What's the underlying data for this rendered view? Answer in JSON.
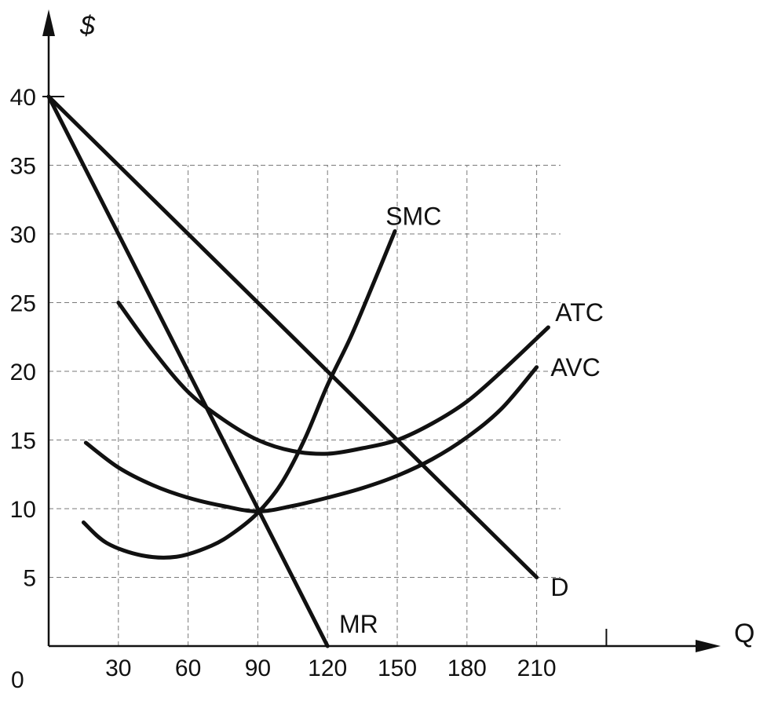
{
  "chart_data": {
    "type": "line",
    "ylabel": "$",
    "xlabel": "Q",
    "origin_label": "0",
    "xlim": [
      0,
      240
    ],
    "ylim": [
      0,
      40
    ],
    "x_ticks": [
      30,
      60,
      90,
      120,
      150,
      180,
      210
    ],
    "x_tick_labels": [
      "30",
      "60",
      "90",
      "120",
      "150",
      "180",
      "210"
    ],
    "y_ticks": [
      5,
      10,
      15,
      20,
      25,
      30,
      35,
      40
    ],
    "y_tick_labels": [
      "5",
      "10",
      "15",
      "20",
      "25",
      "30",
      "35",
      "40"
    ],
    "grid": true,
    "series": [
      {
        "name": "D",
        "points": [
          [
            0,
            40
          ],
          [
            210,
            5
          ]
        ]
      },
      {
        "name": "MR",
        "points": [
          [
            0,
            40
          ],
          [
            120,
            0
          ]
        ]
      },
      {
        "name": "SMC",
        "points": [
          [
            15,
            9
          ],
          [
            25,
            7.5
          ],
          [
            40,
            6.6
          ],
          [
            55,
            6.5
          ],
          [
            70,
            7.3
          ],
          [
            80,
            8.3
          ],
          [
            90,
            9.7
          ],
          [
            100,
            11.8
          ],
          [
            110,
            15
          ],
          [
            120,
            19
          ],
          [
            130,
            22.5
          ],
          [
            140,
            26.5
          ],
          [
            149,
            30.2
          ]
        ]
      },
      {
        "name": "ATC",
        "points": [
          [
            30,
            25
          ],
          [
            45,
            21.5
          ],
          [
            60,
            18.5
          ],
          [
            75,
            16.5
          ],
          [
            90,
            15
          ],
          [
            105,
            14.2
          ],
          [
            120,
            14
          ],
          [
            135,
            14.4
          ],
          [
            150,
            15
          ],
          [
            165,
            16.2
          ],
          [
            180,
            17.8
          ],
          [
            195,
            20
          ],
          [
            215,
            23.2
          ]
        ]
      },
      {
        "name": "AVC",
        "points": [
          [
            16,
            14.8
          ],
          [
            30,
            13
          ],
          [
            45,
            11.7
          ],
          [
            60,
            10.8
          ],
          [
            75,
            10.2
          ],
          [
            90,
            9.8
          ],
          [
            105,
            10.2
          ],
          [
            120,
            10.8
          ],
          [
            135,
            11.5
          ],
          [
            150,
            12.4
          ],
          [
            165,
            13.6
          ],
          [
            180,
            15.2
          ],
          [
            195,
            17.3
          ],
          [
            210,
            20.3
          ]
        ]
      }
    ],
    "curve_labels": [
      {
        "name": "SMC",
        "x": 145,
        "y": 31.3
      },
      {
        "name": "ATC",
        "x": 218,
        "y": 24.3
      },
      {
        "name": "AVC",
        "x": 216,
        "y": 20.3
      },
      {
        "name": "D",
        "x": 216,
        "y": 4.3
      },
      {
        "name": "MR",
        "x": 125,
        "y": 1.6
      }
    ]
  }
}
